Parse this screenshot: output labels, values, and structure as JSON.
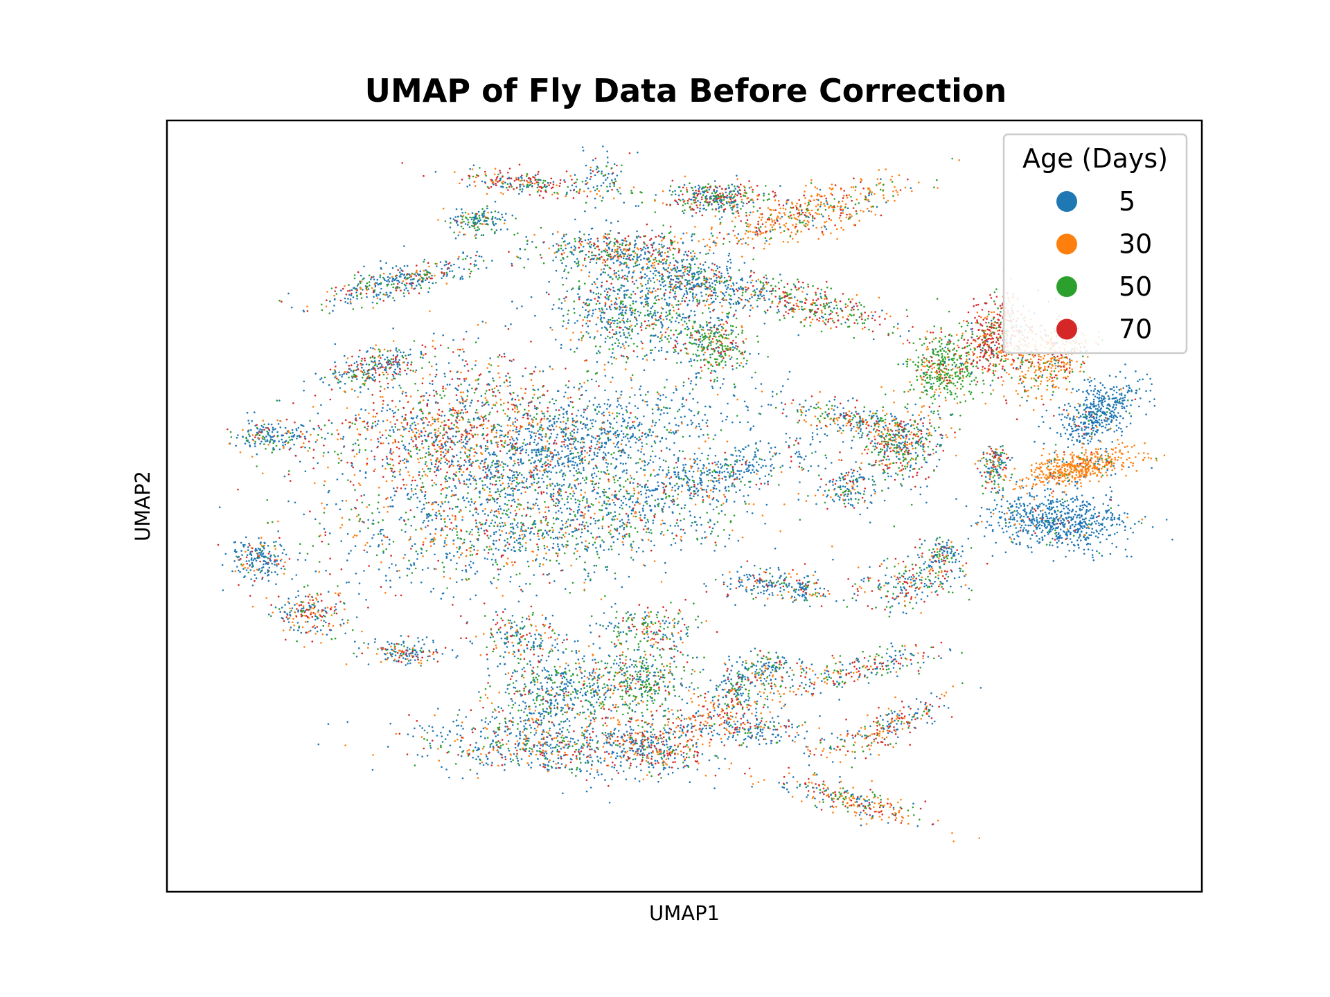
{
  "chart_data": {
    "type": "scatter",
    "title": "UMAP of Fly Data Before Correction",
    "xlabel": "UMAP1",
    "ylabel": "UMAP2",
    "xlim": [
      0,
      100
    ],
    "ylim": [
      0,
      100
    ],
    "grid": false,
    "ticks_shown": false,
    "legend": {
      "title": "Age (Days)",
      "placement": "top-right"
    },
    "series": [
      {
        "name": "5",
        "color": "#1f77b4"
      },
      {
        "name": "30",
        "color": "#ff7f0e"
      },
      {
        "name": "50",
        "color": "#2ca02c"
      },
      {
        "name": "70",
        "color": "#d62728"
      }
    ],
    "clusters": [
      {
        "cx": 37,
        "cy": 52,
        "rx": 21,
        "ry": 8,
        "rot": -10,
        "n": 1500,
        "w": [
          0.5,
          0.15,
          0.25,
          0.1
        ]
      },
      {
        "cx": 28,
        "cy": 40,
        "rx": 14,
        "ry": 9,
        "rot": -15,
        "n": 1400,
        "w": [
          0.35,
          0.25,
          0.15,
          0.25
        ]
      },
      {
        "cx": 40,
        "cy": 42,
        "rx": 16,
        "ry": 5,
        "rot": -22,
        "n": 900,
        "w": [
          0.8,
          0.05,
          0.1,
          0.05
        ]
      },
      {
        "cx": 53,
        "cy": 46,
        "rx": 12,
        "ry": 3,
        "rot": -20,
        "n": 400,
        "w": [
          0.8,
          0.05,
          0.1,
          0.05
        ]
      },
      {
        "cx": 37,
        "cy": 81,
        "rx": 13,
        "ry": 4,
        "rot": 5,
        "n": 700,
        "w": [
          0.55,
          0.15,
          0.15,
          0.15
        ]
      },
      {
        "cx": 38,
        "cy": 74,
        "rx": 6,
        "ry": 5,
        "rot": 0,
        "n": 500,
        "w": [
          0.55,
          0.1,
          0.25,
          0.1
        ]
      },
      {
        "cx": 46,
        "cy": 73,
        "rx": 5,
        "ry": 4,
        "rot": 0,
        "n": 350,
        "w": [
          0.3,
          0.1,
          0.5,
          0.1
        ]
      },
      {
        "cx": 47,
        "cy": 81,
        "rx": 6,
        "ry": 3,
        "rot": 25,
        "n": 250,
        "w": [
          0.4,
          0.15,
          0.15,
          0.3
        ]
      },
      {
        "cx": 53,
        "cy": 77,
        "rx": 9,
        "ry": 3,
        "rot": -30,
        "n": 350,
        "w": [
          0.35,
          0.3,
          0.1,
          0.25
        ]
      },
      {
        "cx": 66,
        "cy": 88,
        "rx": 7,
        "ry": 2,
        "rot": 20,
        "n": 250,
        "w": [
          0.25,
          0.35,
          0.15,
          0.25
        ]
      },
      {
        "cx": 69,
        "cy": 79,
        "rx": 8,
        "ry": 2,
        "rot": -30,
        "n": 250,
        "w": [
          0.3,
          0.3,
          0.15,
          0.25
        ]
      },
      {
        "cx": 68,
        "cy": 71,
        "rx": 7,
        "ry": 2,
        "rot": -20,
        "n": 200,
        "w": [
          0.35,
          0.15,
          0.25,
          0.25
        ]
      },
      {
        "cx": 46,
        "cy": 66,
        "rx": 5,
        "ry": 3,
        "rot": 0,
        "n": 200,
        "w": [
          0.35,
          0.15,
          0.35,
          0.15
        ]
      },
      {
        "cx": 34,
        "cy": 67,
        "rx": 4,
        "ry": 3,
        "rot": 0,
        "n": 180,
        "w": [
          0.45,
          0.15,
          0.2,
          0.2
        ]
      },
      {
        "cx": 23,
        "cy": 69,
        "rx": 4,
        "ry": 1.5,
        "rot": 0,
        "n": 150,
        "w": [
          0.5,
          0.15,
          0.15,
          0.2
        ]
      },
      {
        "cx": 86,
        "cy": 52,
        "rx": 7,
        "ry": 3.5,
        "rot": 5,
        "n": 700,
        "w": [
          0.92,
          0.03,
          0.03,
          0.02
        ]
      },
      {
        "cx": 88,
        "cy": 45,
        "rx": 6,
        "ry": 2,
        "rot": -15,
        "n": 500,
        "w": [
          0.05,
          0.9,
          0.03,
          0.02
        ]
      },
      {
        "cx": 90,
        "cy": 38,
        "rx": 5,
        "ry": 3,
        "rot": -45,
        "n": 450,
        "w": [
          0.92,
          0.03,
          0.03,
          0.02
        ]
      },
      {
        "cx": 85,
        "cy": 31,
        "rx": 4,
        "ry": 5,
        "rot": 30,
        "n": 400,
        "w": [
          0.1,
          0.6,
          0.15,
          0.15
        ]
      },
      {
        "cx": 80,
        "cy": 28,
        "rx": 3,
        "ry": 5,
        "rot": 10,
        "n": 400,
        "w": [
          0.05,
          0.15,
          0.25,
          0.55
        ]
      },
      {
        "cx": 75,
        "cy": 32,
        "rx": 3.5,
        "ry": 5,
        "rot": 0,
        "n": 400,
        "w": [
          0.05,
          0.15,
          0.7,
          0.1
        ]
      },
      {
        "cx": 71,
        "cy": 42,
        "rx": 4,
        "ry": 5,
        "rot": 0,
        "n": 400,
        "w": [
          0.35,
          0.15,
          0.3,
          0.2
        ]
      },
      {
        "cx": 66,
        "cy": 48,
        "rx": 3,
        "ry": 3,
        "rot": 0,
        "n": 150,
        "w": [
          0.6,
          0.1,
          0.15,
          0.15
        ]
      },
      {
        "cx": 45,
        "cy": 25,
        "rx": 8,
        "ry": 6,
        "rot": 0,
        "n": 700,
        "w": [
          0.55,
          0.1,
          0.25,
          0.1
        ]
      },
      {
        "cx": 52,
        "cy": 21,
        "rx": 7,
        "ry": 3,
        "rot": 20,
        "n": 350,
        "w": [
          0.7,
          0.1,
          0.15,
          0.05
        ]
      },
      {
        "cx": 44,
        "cy": 17,
        "rx": 9,
        "ry": 3,
        "rot": 0,
        "n": 500,
        "w": [
          0.45,
          0.15,
          0.2,
          0.2
        ]
      },
      {
        "cx": 53,
        "cy": 29,
        "rx": 3.5,
        "ry": 4,
        "rot": 0,
        "n": 300,
        "w": [
          0.2,
          0.1,
          0.55,
          0.15
        ]
      },
      {
        "cx": 62,
        "cy": 24,
        "rx": 9,
        "ry": 2.5,
        "rot": 20,
        "n": 350,
        "w": [
          0.15,
          0.15,
          0.35,
          0.35
        ]
      },
      {
        "cx": 62,
        "cy": 12,
        "rx": 11,
        "ry": 3,
        "rot": -20,
        "n": 450,
        "w": [
          0.1,
          0.6,
          0.15,
          0.15
        ]
      },
      {
        "cx": 53,
        "cy": 10,
        "rx": 5,
        "ry": 2,
        "rot": 0,
        "n": 350,
        "w": [
          0.3,
          0.1,
          0.35,
          0.25
        ]
      },
      {
        "cx": 34,
        "cy": 8,
        "rx": 6,
        "ry": 1.5,
        "rot": 10,
        "n": 200,
        "w": [
          0.3,
          0.15,
          0.15,
          0.4
        ]
      },
      {
        "cx": 42,
        "cy": 8,
        "rx": 3,
        "ry": 4,
        "rot": 10,
        "n": 100,
        "w": [
          0.6,
          0.1,
          0.2,
          0.1
        ]
      },
      {
        "cx": 22,
        "cy": 21,
        "rx": 8,
        "ry": 2,
        "rot": -20,
        "n": 350,
        "w": [
          0.55,
          0.1,
          0.2,
          0.15
        ]
      },
      {
        "cx": 20,
        "cy": 32,
        "rx": 5,
        "ry": 2,
        "rot": -20,
        "n": 250,
        "w": [
          0.45,
          0.1,
          0.2,
          0.25
        ]
      },
      {
        "cx": 30,
        "cy": 13,
        "rx": 3,
        "ry": 2,
        "rot": 0,
        "n": 150,
        "w": [
          0.55,
          0.1,
          0.3,
          0.05
        ]
      },
      {
        "cx": 10,
        "cy": 41,
        "rx": 4,
        "ry": 2,
        "rot": 0,
        "n": 180,
        "w": [
          0.65,
          0.1,
          0.15,
          0.1
        ]
      },
      {
        "cx": 9,
        "cy": 57,
        "rx": 3,
        "ry": 3,
        "rot": 0,
        "n": 200,
        "w": [
          0.65,
          0.15,
          0.1,
          0.1
        ]
      },
      {
        "cx": 14,
        "cy": 64,
        "rx": 4,
        "ry": 3,
        "rot": 0,
        "n": 200,
        "w": [
          0.4,
          0.25,
          0.15,
          0.2
        ]
      },
      {
        "cx": 67,
        "cy": 39,
        "rx": 7,
        "ry": 2,
        "rot": 15,
        "n": 250,
        "w": [
          0.3,
          0.3,
          0.2,
          0.2
        ]
      },
      {
        "cx": 72,
        "cy": 60,
        "rx": 6,
        "ry": 3,
        "rot": -20,
        "n": 250,
        "w": [
          0.4,
          0.15,
          0.25,
          0.2
        ]
      },
      {
        "cx": 58,
        "cy": 71,
        "rx": 4,
        "ry": 2,
        "rot": 0,
        "n": 150,
        "w": [
          0.5,
          0.15,
          0.2,
          0.15
        ]
      },
      {
        "cx": 57,
        "cy": 79,
        "rx": 5,
        "ry": 2,
        "rot": 0,
        "n": 150,
        "w": [
          0.6,
          0.1,
          0.15,
          0.15
        ]
      },
      {
        "cx": 55,
        "cy": 73,
        "rx": 2,
        "ry": 2,
        "rot": 0,
        "n": 80,
        "w": [
          0.6,
          0.1,
          0.2,
          0.1
        ]
      },
      {
        "cx": 80,
        "cy": 45,
        "rx": 1.5,
        "ry": 3,
        "rot": 0,
        "n": 150,
        "w": [
          0.35,
          0.2,
          0.25,
          0.2
        ]
      },
      {
        "cx": 75,
        "cy": 56,
        "rx": 2,
        "ry": 2,
        "rot": 0,
        "n": 100,
        "w": [
          0.6,
          0.1,
          0.2,
          0.1
        ]
      },
      {
        "cx": 58,
        "cy": 60,
        "rx": 4,
        "ry": 2,
        "rot": 0,
        "n": 150,
        "w": [
          0.6,
          0.15,
          0.15,
          0.1
        ]
      },
      {
        "cx": 62,
        "cy": 61,
        "rx": 2,
        "ry": 1.5,
        "rot": 0,
        "n": 80,
        "w": [
          0.5,
          0.15,
          0.2,
          0.15
        ]
      }
    ]
  }
}
